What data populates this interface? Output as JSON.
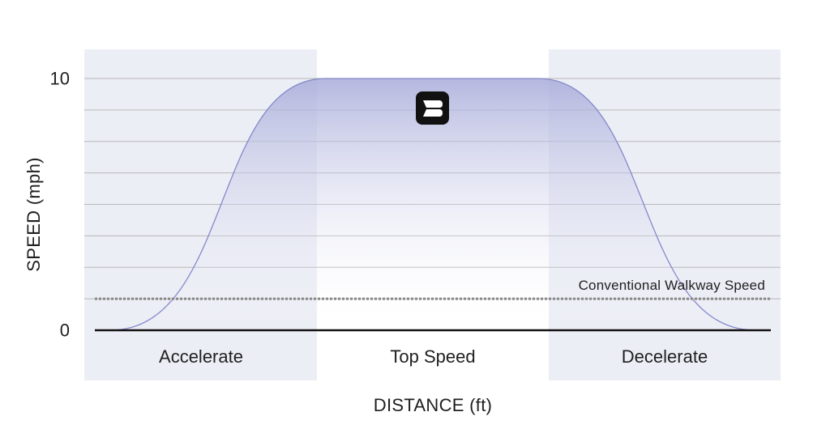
{
  "chart_data": {
    "type": "area",
    "title": "",
    "xlabel": "DISTANCE (ft)",
    "ylabel": "SPEED (mph)",
    "ylim": [
      0,
      10
    ],
    "yticks": [
      0,
      10
    ],
    "grid": true,
    "gridlines": 8,
    "phases": [
      {
        "label": "Accelerate",
        "shaded": true
      },
      {
        "label": "Top Speed",
        "shaded": false
      },
      {
        "label": "Decelerate",
        "shaded": true
      }
    ],
    "reference_line": {
      "label": "Conventional Walkway Speed",
      "value": 1.25,
      "style": "dotted"
    },
    "profile": {
      "start_speed": 0,
      "peak_speed": 10,
      "end_speed": 0
    },
    "colors": {
      "curve": "#8389c9",
      "fill_top": "#a7abd9",
      "fill_bottom": "#ffffff",
      "phase_band": "#eceef6",
      "grid": "#b7b7b7",
      "baseline": "#111111",
      "reference": "#888888"
    },
    "logo_icon": "b-logo-icon"
  }
}
